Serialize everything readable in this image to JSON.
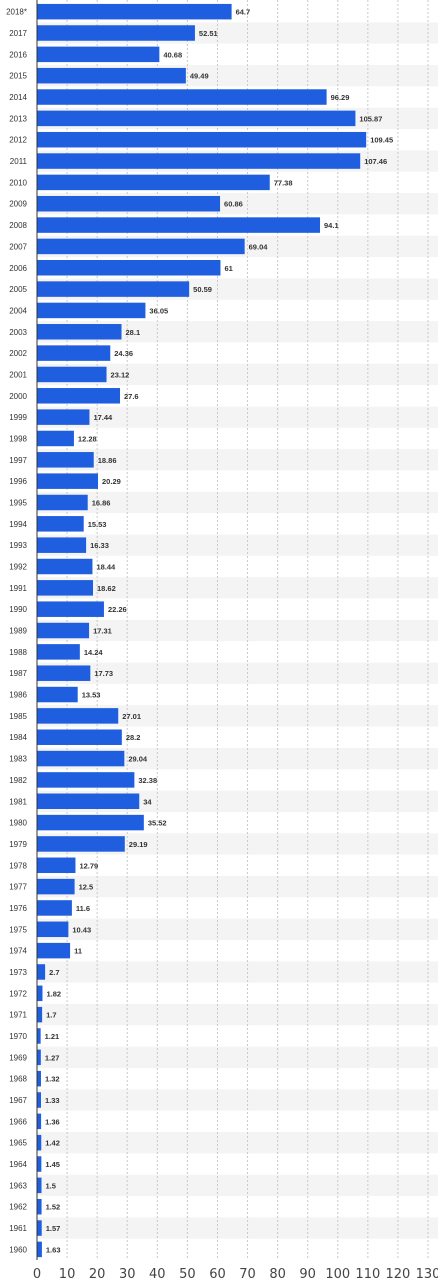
{
  "chart_data": {
    "type": "bar",
    "orientation": "horizontal",
    "categories": [
      "2018*",
      "2017",
      "2016",
      "2015",
      "2014",
      "2013",
      "2012",
      "2011",
      "2010",
      "2009",
      "2008",
      "2007",
      "2006",
      "2005",
      "2004",
      "2003",
      "2002",
      "2001",
      "2000",
      "1999",
      "1998",
      "1997",
      "1996",
      "1995",
      "1994",
      "1993",
      "1992",
      "1991",
      "1990",
      "1989",
      "1988",
      "1987",
      "1986",
      "1985",
      "1984",
      "1983",
      "1982",
      "1981",
      "1980",
      "1979",
      "1978",
      "1977",
      "1976",
      "1975",
      "1974",
      "1973",
      "1972",
      "1971",
      "1970",
      "1969",
      "1968",
      "1967",
      "1966",
      "1965",
      "1964",
      "1963",
      "1962",
      "1961",
      "1960"
    ],
    "values": [
      64.7,
      52.51,
      40.68,
      49.49,
      96.29,
      105.87,
      109.45,
      107.46,
      77.38,
      60.86,
      94.1,
      69.04,
      61,
      50.59,
      36.05,
      28.1,
      24.36,
      23.12,
      27.6,
      17.44,
      12.28,
      18.86,
      20.29,
      16.86,
      15.53,
      16.33,
      18.44,
      18.62,
      22.26,
      17.31,
      14.24,
      17.73,
      13.53,
      27.01,
      28.2,
      29.04,
      32.38,
      34,
      35.52,
      29.19,
      12.79,
      12.5,
      11.6,
      10.43,
      11,
      2.7,
      1.82,
      1.7,
      1.21,
      1.27,
      1.32,
      1.33,
      1.36,
      1.42,
      1.45,
      1.5,
      1.52,
      1.57,
      1.63
    ],
    "value_labels": [
      "64.7",
      "52.51",
      "40.68",
      "49.49",
      "96.29",
      "105.87",
      "109.45",
      "107.46",
      "77.38",
      "60.86",
      "94.1",
      "69.04",
      "61",
      "50.59",
      "36.05",
      "28.1",
      "24.36",
      "23.12",
      "27.6",
      "17.44",
      "12.28",
      "18.86",
      "20.29",
      "16.86",
      "15.53",
      "16.33",
      "18.44",
      "18.62",
      "22.26",
      "17.31",
      "14.24",
      "17.73",
      "13.53",
      "27.01",
      "28.2",
      "29.04",
      "32.38",
      "34",
      "35.52",
      "29.19",
      "12.79",
      "12.5",
      "11.6",
      "10.43",
      "11",
      "2.7",
      "1.82",
      "1.7",
      "1.21",
      "1.27",
      "1.32",
      "1.33",
      "1.36",
      "1.42",
      "1.45",
      "1.5",
      "1.52",
      "1.57",
      "1.63"
    ],
    "x_ticks": [
      0,
      10,
      20,
      30,
      40,
      50,
      60,
      70,
      80,
      90,
      100,
      110,
      120,
      130
    ],
    "xlim": [
      0,
      130
    ],
    "title": "",
    "xlabel": "",
    "ylabel": "",
    "grid": "vertical dashed",
    "legend": "none",
    "colors": {
      "bar": "#1f5ede",
      "band": "#f4f4f4",
      "grid": "#c8c8c8",
      "axis": "#333333"
    }
  }
}
